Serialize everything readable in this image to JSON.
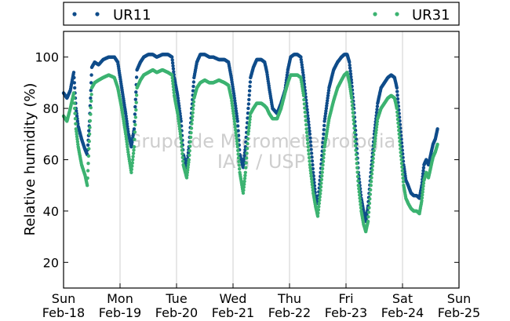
{
  "chart_data": {
    "type": "scatter",
    "title": "",
    "xlabel": "",
    "ylabel": "Relative humidity (%)",
    "ylim": [
      10,
      110
    ],
    "xlim": [
      0,
      7
    ],
    "y_ticks": [
      20,
      40,
      60,
      80,
      100
    ],
    "x_ticks": [
      {
        "x": 0,
        "day": "Sun",
        "date": "Feb-18"
      },
      {
        "x": 1,
        "day": "Mon",
        "date": "Feb-19"
      },
      {
        "x": 2,
        "day": "Tue",
        "date": "Feb-20"
      },
      {
        "x": 3,
        "day": "Wed",
        "date": "Feb-21"
      },
      {
        "x": 4,
        "day": "Thu",
        "date": "Feb-22"
      },
      {
        "x": 5,
        "day": "Fri",
        "date": "Feb-23"
      },
      {
        "x": 6,
        "day": "Sat",
        "date": "Feb-24"
      },
      {
        "x": 7,
        "day": "Sun",
        "date": "Feb-25"
      }
    ],
    "grid": "vertical lines at day boundaries",
    "legend_position": "top (above plot)",
    "watermark": [
      "Grupo de Micrometeorologia",
      "IAG / USP"
    ],
    "series": [
      {
        "name": "UR11",
        "color": "#0f4c8a",
        "points": [
          [
            0.0,
            86
          ],
          [
            0.06,
            84
          ],
          [
            0.12,
            87
          ],
          [
            0.18,
            94
          ],
          [
            0.22,
            80
          ],
          [
            0.26,
            73
          ],
          [
            0.32,
            68
          ],
          [
            0.38,
            64
          ],
          [
            0.42,
            62
          ],
          [
            0.46,
            75
          ],
          [
            0.5,
            96
          ],
          [
            0.55,
            98
          ],
          [
            0.62,
            97
          ],
          [
            0.7,
            99
          ],
          [
            0.8,
            100
          ],
          [
            0.9,
            100
          ],
          [
            0.96,
            98
          ],
          [
            1.03,
            88
          ],
          [
            1.1,
            78
          ],
          [
            1.15,
            70
          ],
          [
            1.2,
            65
          ],
          [
            1.25,
            72
          ],
          [
            1.3,
            95
          ],
          [
            1.36,
            98
          ],
          [
            1.42,
            100
          ],
          [
            1.5,
            101
          ],
          [
            1.58,
            101
          ],
          [
            1.65,
            100
          ],
          [
            1.75,
            101
          ],
          [
            1.85,
            101
          ],
          [
            1.92,
            100
          ],
          [
            1.96,
            92
          ],
          [
            2.02,
            85
          ],
          [
            2.08,
            75
          ],
          [
            2.12,
            62
          ],
          [
            2.18,
            57
          ],
          [
            2.22,
            65
          ],
          [
            2.27,
            80
          ],
          [
            2.31,
            92
          ],
          [
            2.36,
            98
          ],
          [
            2.42,
            101
          ],
          [
            2.5,
            101
          ],
          [
            2.58,
            100
          ],
          [
            2.65,
            100
          ],
          [
            2.75,
            99
          ],
          [
            2.85,
            99
          ],
          [
            2.92,
            98
          ],
          [
            2.97,
            92
          ],
          [
            3.02,
            85
          ],
          [
            3.08,
            75
          ],
          [
            3.12,
            62
          ],
          [
            3.18,
            57
          ],
          [
            3.22,
            65
          ],
          [
            3.27,
            80
          ],
          [
            3.31,
            92
          ],
          [
            3.36,
            96
          ],
          [
            3.42,
            99
          ],
          [
            3.5,
            99
          ],
          [
            3.56,
            98
          ],
          [
            3.6,
            94
          ],
          [
            3.64,
            88
          ],
          [
            3.7,
            80
          ],
          [
            3.78,
            78
          ],
          [
            3.85,
            82
          ],
          [
            3.92,
            87
          ],
          [
            3.97,
            95
          ],
          [
            4.02,
            100
          ],
          [
            4.08,
            101
          ],
          [
            4.14,
            101
          ],
          [
            4.2,
            100
          ],
          [
            4.25,
            92
          ],
          [
            4.3,
            82
          ],
          [
            4.36,
            70
          ],
          [
            4.42,
            55
          ],
          [
            4.46,
            46
          ],
          [
            4.5,
            43
          ],
          [
            4.55,
            55
          ],
          [
            4.62,
            75
          ],
          [
            4.7,
            88
          ],
          [
            4.78,
            95
          ],
          [
            4.85,
            98
          ],
          [
            4.92,
            100
          ],
          [
            4.97,
            101
          ],
          [
            5.02,
            101
          ],
          [
            5.06,
            98
          ],
          [
            5.1,
            90
          ],
          [
            5.14,
            80
          ],
          [
            5.18,
            68
          ],
          [
            5.22,
            55
          ],
          [
            5.27,
            45
          ],
          [
            5.31,
            40
          ],
          [
            5.35,
            36
          ],
          [
            5.39,
            42
          ],
          [
            5.44,
            55
          ],
          [
            5.5,
            70
          ],
          [
            5.56,
            82
          ],
          [
            5.62,
            88
          ],
          [
            5.68,
            90
          ],
          [
            5.74,
            92
          ],
          [
            5.8,
            93
          ],
          [
            5.86,
            92
          ],
          [
            5.9,
            88
          ],
          [
            5.94,
            78
          ],
          [
            5.98,
            68
          ],
          [
            6.02,
            58
          ],
          [
            6.06,
            52
          ],
          [
            6.1,
            50
          ],
          [
            6.15,
            47
          ],
          [
            6.2,
            46
          ],
          [
            6.25,
            46
          ],
          [
            6.3,
            45
          ],
          [
            6.34,
            50
          ],
          [
            6.38,
            58
          ],
          [
            6.42,
            60
          ],
          [
            6.46,
            58
          ],
          [
            6.5,
            62
          ],
          [
            6.54,
            66
          ],
          [
            6.58,
            68
          ],
          [
            6.62,
            72
          ]
        ]
      },
      {
        "name": "UR31",
        "color": "#3cb371",
        "points": [
          [
            0.0,
            77
          ],
          [
            0.06,
            75
          ],
          [
            0.12,
            80
          ],
          [
            0.18,
            86
          ],
          [
            0.22,
            72
          ],
          [
            0.26,
            65
          ],
          [
            0.32,
            58
          ],
          [
            0.38,
            54
          ],
          [
            0.42,
            50
          ],
          [
            0.46,
            70
          ],
          [
            0.5,
            88
          ],
          [
            0.55,
            90
          ],
          [
            0.62,
            91
          ],
          [
            0.7,
            92
          ],
          [
            0.8,
            93
          ],
          [
            0.9,
            92
          ],
          [
            0.96,
            88
          ],
          [
            1.03,
            80
          ],
          [
            1.1,
            70
          ],
          [
            1.15,
            62
          ],
          [
            1.2,
            55
          ],
          [
            1.25,
            65
          ],
          [
            1.3,
            88
          ],
          [
            1.36,
            91
          ],
          [
            1.42,
            93
          ],
          [
            1.5,
            94
          ],
          [
            1.58,
            95
          ],
          [
            1.65,
            94
          ],
          [
            1.75,
            95
          ],
          [
            1.85,
            94
          ],
          [
            1.92,
            93
          ],
          [
            1.96,
            85
          ],
          [
            2.02,
            78
          ],
          [
            2.08,
            68
          ],
          [
            2.12,
            58
          ],
          [
            2.18,
            53
          ],
          [
            2.22,
            60
          ],
          [
            2.27,
            74
          ],
          [
            2.31,
            84
          ],
          [
            2.36,
            88
          ],
          [
            2.42,
            90
          ],
          [
            2.5,
            91
          ],
          [
            2.58,
            90
          ],
          [
            2.65,
            90
          ],
          [
            2.75,
            91
          ],
          [
            2.85,
            90
          ],
          [
            2.92,
            89
          ],
          [
            2.97,
            84
          ],
          [
            3.02,
            76
          ],
          [
            3.08,
            65
          ],
          [
            3.12,
            55
          ],
          [
            3.18,
            47
          ],
          [
            3.22,
            55
          ],
          [
            3.27,
            70
          ],
          [
            3.31,
            78
          ],
          [
            3.36,
            80
          ],
          [
            3.42,
            82
          ],
          [
            3.5,
            82
          ],
          [
            3.56,
            81
          ],
          [
            3.6,
            80
          ],
          [
            3.64,
            78
          ],
          [
            3.7,
            76
          ],
          [
            3.78,
            76
          ],
          [
            3.85,
            80
          ],
          [
            3.92,
            86
          ],
          [
            3.97,
            90
          ],
          [
            4.02,
            93
          ],
          [
            4.08,
            93
          ],
          [
            4.14,
            93
          ],
          [
            4.2,
            92
          ],
          [
            4.25,
            85
          ],
          [
            4.3,
            72
          ],
          [
            4.36,
            58
          ],
          [
            4.42,
            47
          ],
          [
            4.46,
            42
          ],
          [
            4.5,
            38
          ],
          [
            4.55,
            48
          ],
          [
            4.62,
            65
          ],
          [
            4.7,
            76
          ],
          [
            4.78,
            83
          ],
          [
            4.85,
            88
          ],
          [
            4.92,
            91
          ],
          [
            4.97,
            93
          ],
          [
            5.02,
            94
          ],
          [
            5.06,
            90
          ],
          [
            5.1,
            84
          ],
          [
            5.14,
            74
          ],
          [
            5.18,
            62
          ],
          [
            5.22,
            50
          ],
          [
            5.27,
            40
          ],
          [
            5.31,
            35
          ],
          [
            5.35,
            32
          ],
          [
            5.39,
            36
          ],
          [
            5.44,
            50
          ],
          [
            5.5,
            65
          ],
          [
            5.56,
            76
          ],
          [
            5.62,
            80
          ],
          [
            5.68,
            82
          ],
          [
            5.74,
            84
          ],
          [
            5.8,
            85
          ],
          [
            5.86,
            84
          ],
          [
            5.9,
            80
          ],
          [
            5.94,
            70
          ],
          [
            5.98,
            60
          ],
          [
            6.02,
            50
          ],
          [
            6.06,
            45
          ],
          [
            6.1,
            43
          ],
          [
            6.15,
            41
          ],
          [
            6.2,
            40
          ],
          [
            6.25,
            40
          ],
          [
            6.3,
            39
          ],
          [
            6.34,
            44
          ],
          [
            6.38,
            52
          ],
          [
            6.42,
            55
          ],
          [
            6.46,
            53
          ],
          [
            6.5,
            57
          ],
          [
            6.54,
            61
          ],
          [
            6.58,
            63
          ],
          [
            6.62,
            66
          ]
        ]
      }
    ]
  }
}
